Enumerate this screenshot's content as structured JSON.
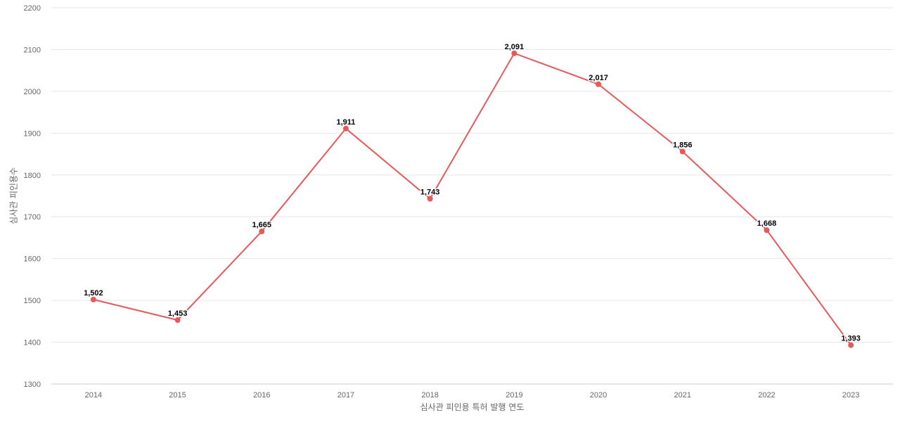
{
  "chart_data": {
    "type": "line",
    "title": "",
    "xlabel": "심사관 피인용 특허 발행 연도",
    "ylabel": "심사관 피인용수",
    "ylim": [
      1300,
      2200
    ],
    "yticks": [
      1300,
      1400,
      1500,
      1600,
      1700,
      1800,
      1900,
      2000,
      2100,
      2200
    ],
    "grid": true,
    "legend": "none",
    "color": "#e8585a",
    "categories": [
      "2014",
      "2015",
      "2016",
      "2017",
      "2018",
      "2019",
      "2020",
      "2021",
      "2022",
      "2023"
    ],
    "values": [
      1502,
      1453,
      1665,
      1911,
      1743,
      2091,
      2017,
      1856,
      1668,
      1393
    ],
    "value_labels": [
      "1,502",
      "1,453",
      "1,665",
      "1,911",
      "1,743",
      "2,091",
      "2,017",
      "1,856",
      "1,668",
      "1,393"
    ]
  }
}
